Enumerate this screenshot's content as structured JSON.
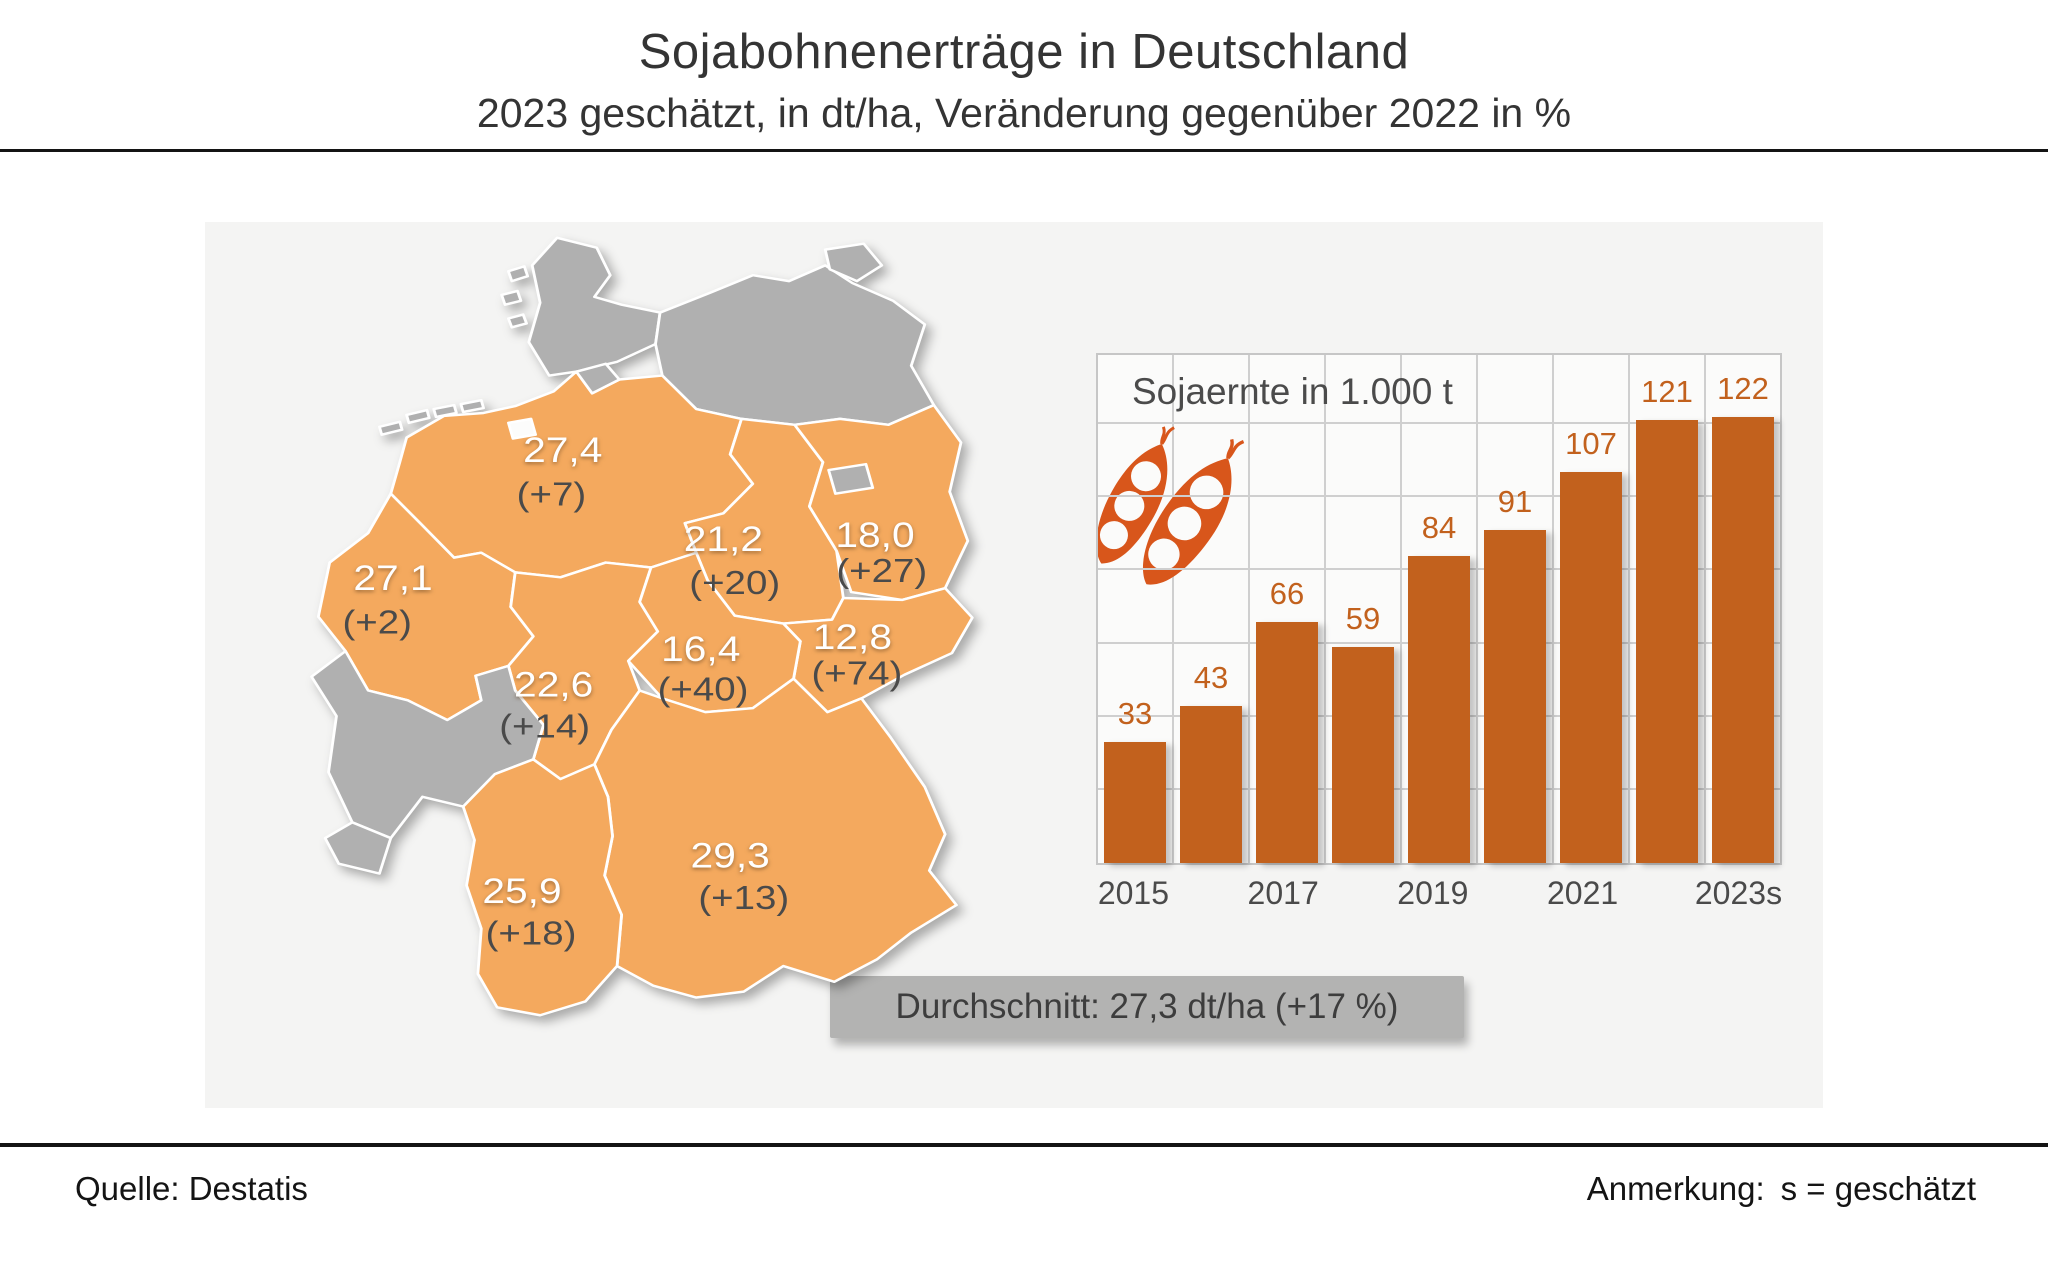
{
  "header": {
    "title": "Sojabohnenerträge in Deutschland",
    "subtitle": "2023 geschätzt, in dt/ha, Veränderung gegenüber 2022 in %"
  },
  "map": {
    "regions": [
      {
        "name": "niedersachsen",
        "value": "27,4",
        "change": "(+7)"
      },
      {
        "name": "nordrhein-westfalen",
        "value": "27,1",
        "change": "(+2)"
      },
      {
        "name": "sachsen-anhalt",
        "value": "21,2",
        "change": "(+20)"
      },
      {
        "name": "brandenburg",
        "value": "18,0",
        "change": "(+27)"
      },
      {
        "name": "sachsen",
        "value": "12,8",
        "change": "(+74)"
      },
      {
        "name": "thueringen",
        "value": "16,4",
        "change": "(+40)"
      },
      {
        "name": "hessen",
        "value": "22,6",
        "change": "(+14)"
      },
      {
        "name": "bayern",
        "value": "29,3",
        "change": "(+13)"
      },
      {
        "name": "baden-wuerttemberg",
        "value": "25,9",
        "change": "(+18)"
      }
    ],
    "average_banner": "Durchschnitt: 27,3 dt/ha (+17 %)",
    "colors": {
      "with_data": "#f4a95e",
      "no_data": "#b0b0b0"
    }
  },
  "chart_data": {
    "type": "bar",
    "title": "Sojaernte in 1.000 t",
    "categories": [
      "2015",
      "2016",
      "2017",
      "2018",
      "2019",
      "2020",
      "2021",
      "2022",
      "2023s"
    ],
    "x_tick_labels": [
      "2015",
      "",
      "2017",
      "",
      "2019",
      "",
      "2021",
      "",
      "2023s"
    ],
    "values": [
      33,
      43,
      66,
      59,
      84,
      91,
      107,
      121,
      122
    ],
    "ylim": [
      0,
      140
    ],
    "grid_step": 20,
    "grid": true,
    "legend": "none",
    "bar_color": "#c2611d",
    "label_color": "#c2611d"
  },
  "footer": {
    "source": "Quelle: Destatis",
    "note_label": "Anmerkung:",
    "note_text": "s = geschätzt"
  }
}
